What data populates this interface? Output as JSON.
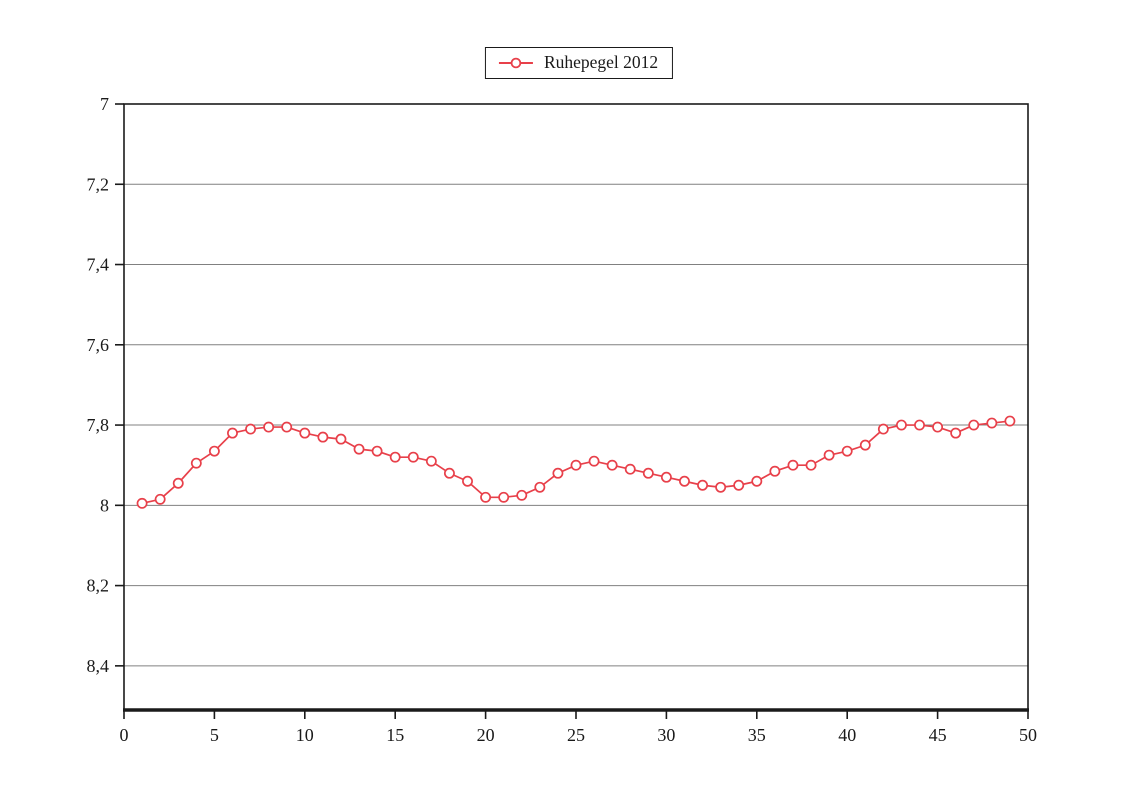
{
  "legend": {
    "label": "Ruhepegel 2012"
  },
  "colors": {
    "series_red": "#e8404a",
    "axis": "#1a1a1a",
    "gridline": "#808080",
    "background": "#ffffff",
    "marker_fill": "#ffffff"
  },
  "chart_data": {
    "type": "line",
    "title": "",
    "xlabel": "",
    "ylabel": "",
    "grid": "horizontal",
    "legend_position": "top-center",
    "y_axis_inverted": true,
    "xlim": [
      0,
      50
    ],
    "ylim": [
      7,
      8.51
    ],
    "x_ticks": [
      0,
      5,
      10,
      15,
      20,
      25,
      30,
      35,
      40,
      45,
      50
    ],
    "x_tick_labels": [
      "0",
      "5",
      "10",
      "15",
      "20",
      "25",
      "30",
      "35",
      "40",
      "45",
      "50"
    ],
    "y_ticks": [
      7,
      7.2,
      7.4,
      7.6,
      7.8,
      8,
      8.2,
      8.4
    ],
    "y_tick_labels": [
      "7",
      "7,2",
      "7,4",
      "7,6",
      "7,8",
      "8",
      "8,2",
      "8,4"
    ],
    "series": [
      {
        "name": "Ruhepegel 2012",
        "color": "#e8404a",
        "marker": "open-circle",
        "x": [
          1,
          2,
          3,
          4,
          5,
          6,
          7,
          8,
          9,
          10,
          11,
          12,
          13,
          14,
          15,
          16,
          17,
          18,
          19,
          20,
          21,
          22,
          23,
          24,
          25,
          26,
          27,
          28,
          29,
          30,
          31,
          32,
          33,
          34,
          35,
          36,
          37,
          38,
          39,
          40,
          41,
          42,
          43,
          44,
          45,
          46,
          47,
          48,
          49
        ],
        "values": [
          7.995,
          7.985,
          7.945,
          7.895,
          7.865,
          7.82,
          7.81,
          7.805,
          7.805,
          7.82,
          7.83,
          7.835,
          7.86,
          7.865,
          7.88,
          7.88,
          7.89,
          7.92,
          7.94,
          7.98,
          7.98,
          7.975,
          7.955,
          7.92,
          7.9,
          7.89,
          7.9,
          7.91,
          7.92,
          7.93,
          7.94,
          7.95,
          7.955,
          7.95,
          7.94,
          7.915,
          7.9,
          7.9,
          7.875,
          7.865,
          7.85,
          7.81,
          7.8,
          7.8,
          7.805,
          7.82,
          7.8,
          7.795,
          7.79
        ]
      }
    ]
  }
}
